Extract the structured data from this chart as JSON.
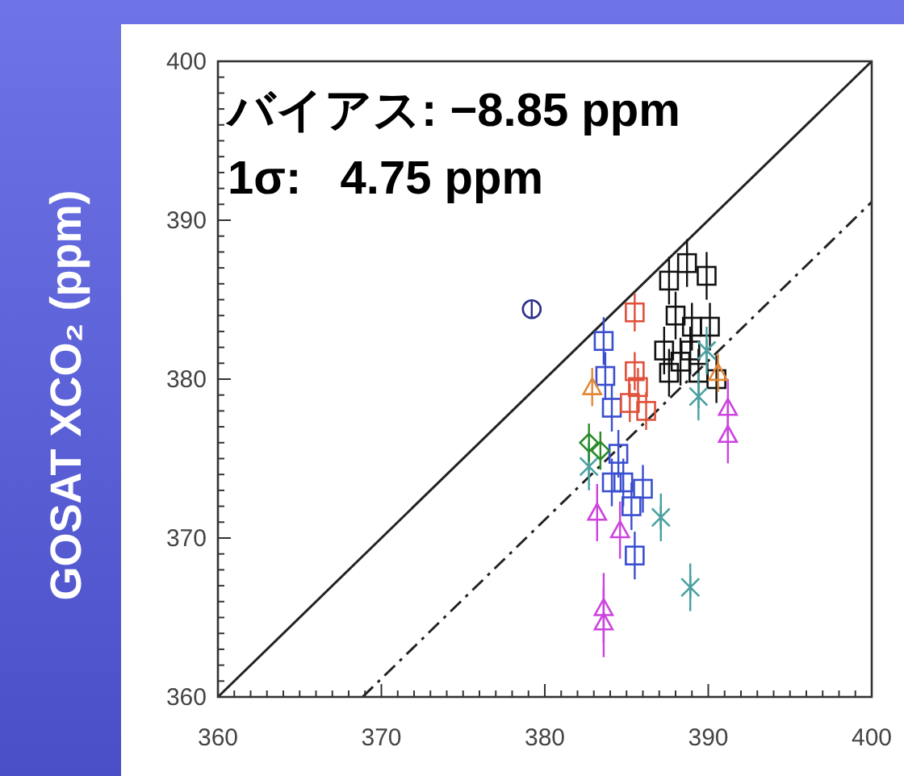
{
  "chart_data": {
    "type": "scatter",
    "ylabel": "GOSAT XCO₂ (ppm)",
    "annotations": [
      "バイアス: −8.85 ppm",
      "1σ:   4.75 ppm"
    ],
    "xlim": [
      360,
      400
    ],
    "ylim": [
      360,
      400
    ],
    "xticks": [
      360,
      {
        "value": 361,
        "label": null
      },
      {
        "value": 362,
        "label": null
      },
      {
        "value": 363,
        "label": null
      },
      {
        "value": 364,
        "label": null
      },
      {
        "value": 365,
        "label": null
      },
      {
        "value": 366,
        "label": null
      },
      {
        "value": 367,
        "label": null
      },
      {
        "value": 368,
        "label": null
      },
      {
        "value": 369,
        "label": null
      },
      370,
      {
        "value": 371,
        "label": null
      },
      {
        "value": 372,
        "label": null
      },
      {
        "value": 373,
        "label": null
      },
      {
        "value": 374,
        "label": null
      },
      {
        "value": 375,
        "label": null
      },
      {
        "value": 376,
        "label": null
      },
      {
        "value": 377,
        "label": null
      },
      {
        "value": 378,
        "label": null
      },
      {
        "value": 379,
        "label": null
      },
      380,
      {
        "value": 381,
        "label": null
      },
      {
        "value": 382,
        "label": null
      },
      {
        "value": 383,
        "label": null
      },
      {
        "value": 384,
        "label": null
      },
      {
        "value": 385,
        "label": null
      },
      {
        "value": 386,
        "label": null
      },
      {
        "value": 387,
        "label": null
      },
      {
        "value": 388,
        "label": null
      },
      {
        "value": 389,
        "label": null
      },
      390,
      {
        "value": 391,
        "label": null
      },
      {
        "value": 392,
        "label": null
      },
      {
        "value": 393,
        "label": null
      },
      {
        "value": 394,
        "label": null
      },
      {
        "value": 395,
        "label": null
      },
      {
        "value": 396,
        "label": null
      },
      {
        "value": 397,
        "label": null
      },
      {
        "value": 398,
        "label": null
      },
      {
        "value": 399,
        "label": null
      },
      400
    ],
    "yticks": [
      360,
      {
        "value": 361,
        "label": null
      },
      {
        "value": 362,
        "label": null
      },
      {
        "value": 363,
        "label": null
      },
      {
        "value": 364,
        "label": null
      },
      {
        "value": 365,
        "label": null
      },
      {
        "value": 366,
        "label": null
      },
      {
        "value": 367,
        "label": null
      },
      {
        "value": 368,
        "label": null
      },
      {
        "value": 369,
        "label": null
      },
      370,
      {
        "value": 371,
        "label": null
      },
      {
        "value": 372,
        "label": null
      },
      {
        "value": 373,
        "label": null
      },
      {
        "value": 374,
        "label": null
      },
      {
        "value": 375,
        "label": null
      },
      {
        "value": 376,
        "label": null
      },
      {
        "value": 377,
        "label": null
      },
      {
        "value": 378,
        "label": null
      },
      {
        "value": 379,
        "label": null
      },
      380,
      {
        "value": 381,
        "label": null
      },
      {
        "value": 382,
        "label": null
      },
      {
        "value": 383,
        "label": null
      },
      {
        "value": 384,
        "label": null
      },
      {
        "value": 385,
        "label": null
      },
      {
        "value": 386,
        "label": null
      },
      {
        "value": 387,
        "label": null
      },
      {
        "value": 388,
        "label": null
      },
      {
        "value": 389,
        "label": null
      },
      390,
      {
        "value": 391,
        "label": null
      },
      {
        "value": 392,
        "label": null
      },
      {
        "value": 393,
        "label": null
      },
      {
        "value": 394,
        "label": null
      },
      {
        "value": 395,
        "label": null
      },
      {
        "value": 396,
        "label": null
      },
      {
        "value": 397,
        "label": null
      },
      {
        "value": 398,
        "label": null
      },
      {
        "value": 399,
        "label": null
      },
      400
    ],
    "series": [
      {
        "type": "line",
        "color": "#222222",
        "line_style": "solid",
        "x": [
          360,
          400
        ],
        "values": [
          360,
          400
        ]
      },
      {
        "type": "line",
        "color": "#222222",
        "line_style": "dashdot",
        "x": [
          368.85,
          400
        ],
        "values": [
          360,
          391.15
        ]
      },
      {
        "color": "#111111",
        "marker": "square",
        "x": [
          387.6,
          388.7,
          389.9,
          388.0,
          389.0,
          390.1,
          387.3,
          388.3,
          389.4,
          390.5,
          387.6,
          388.9
        ],
        "values": [
          386.2,
          387.3,
          386.5,
          384.0,
          383.3,
          383.3,
          381.8,
          381.1,
          380.4,
          380.0,
          380.4,
          381.8
        ],
        "errors": [
          1.5,
          1.5,
          1.5,
          1.5,
          1.5,
          1.5,
          1.5,
          1.5,
          1.5,
          1.5,
          1.5,
          1.5
        ]
      },
      {
        "color": "#2b2f8a",
        "marker": "circle",
        "x": [
          379.2
        ],
        "values": [
          384.4
        ],
        "errors": [
          0.5
        ]
      },
      {
        "color": "#3a4fd0",
        "marker": "square",
        "x": [
          383.6,
          383.7,
          384.1,
          384.5,
          384.8,
          385.3,
          385.5,
          386.0,
          384.1
        ],
        "values": [
          382.4,
          380.2,
          378.2,
          375.3,
          373.5,
          372.0,
          368.9,
          373.1,
          373.5
        ],
        "errors": [
          1.5,
          1.5,
          1.5,
          1.5,
          1.5,
          1.5,
          1.5,
          1.5,
          1.5
        ]
      },
      {
        "color": "#e0503a",
        "marker": "square",
        "x": [
          385.5,
          385.5,
          385.7,
          386.2,
          385.2
        ],
        "values": [
          384.2,
          380.5,
          379.5,
          378.0,
          378.5
        ],
        "errors": [
          1.2,
          1.2,
          1.2,
          1.2,
          1.2
        ]
      },
      {
        "color": "#cc44dd",
        "marker": "triangle",
        "x": [
          383.2,
          383.6,
          383.6,
          391.2,
          391.2,
          384.6
        ],
        "values": [
          371.6,
          365.6,
          364.7,
          378.2,
          376.5,
          370.5
        ],
        "errors": [
          1.8,
          2.2,
          2.2,
          1.8,
          1.8,
          1.8
        ]
      },
      {
        "color": "#4aa0a0",
        "marker": "cross",
        "x": [
          387.1,
          388.9,
          382.7,
          389.9,
          389.4
        ],
        "values": [
          371.3,
          366.9,
          374.5,
          381.8,
          378.9
        ],
        "errors": [
          1.5,
          1.5,
          1.5,
          1.5,
          1.5
        ]
      },
      {
        "color": "#2a8a2a",
        "marker": "diamond",
        "x": [
          382.7,
          383.4
        ],
        "values": [
          376.0,
          375.5
        ],
        "errors": [
          1.2,
          1.2
        ]
      },
      {
        "color": "#e08a3a",
        "marker": "triangle",
        "x": [
          382.9,
          390.6
        ],
        "values": [
          379.5,
          380.4
        ],
        "errors": [
          1.2,
          1.2
        ]
      }
    ]
  }
}
